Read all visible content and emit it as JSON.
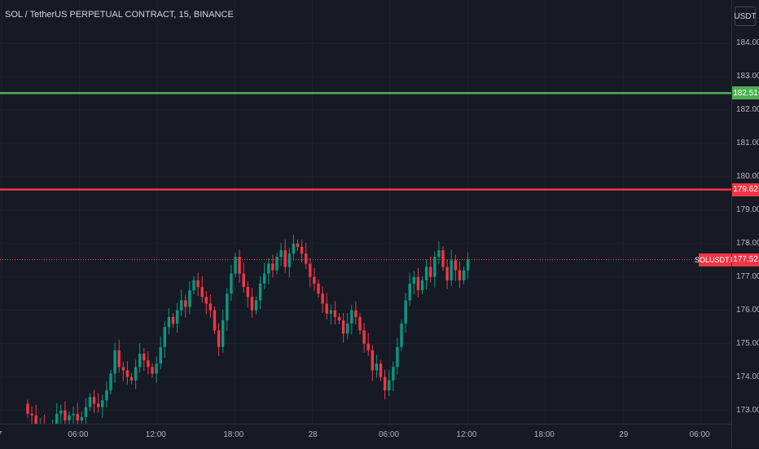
{
  "header": {
    "symbol_title": "SOL / TetherUS PERPETUAL CONTRACT, 15, BINANCE"
  },
  "price_axis": {
    "currency": "USDT",
    "ticks": [
      "184.00",
      "183.00",
      "182.00",
      "181.00",
      "180.00",
      "179.00",
      "178.00",
      "177.00",
      "176.00",
      "175.00",
      "174.00",
      "173.00"
    ]
  },
  "time_axis": {
    "ticks": [
      "7",
      "06:00",
      "12:00",
      "18:00",
      "28",
      "06:00",
      "12:00",
      "18:00",
      "29",
      "06:00"
    ]
  },
  "levels": {
    "green": {
      "price": 182.51,
      "label": "182.51",
      "color": "#4caf50"
    },
    "red": {
      "price": 179.62,
      "label": "179.62",
      "color": "#f23645"
    }
  },
  "last_price": {
    "symbol": "SOLUSDT.P",
    "label": "177.52",
    "price": 177.52,
    "color": "#f23645"
  },
  "colors": {
    "up": "#089981",
    "down": "#f23645",
    "grid": "#1e222d",
    "background": "#161a25"
  },
  "chart_data": {
    "type": "candlestick",
    "title": "SOL / TetherUS PERPETUAL CONTRACT, 15, BINANCE",
    "interval": "15",
    "ylim": [
      172.6,
      185.3
    ],
    "x_ticks": [
      "7",
      "06:00",
      "12:00",
      "18:00",
      "28",
      "06:00",
      "12:00",
      "18:00",
      "29",
      "06:00"
    ],
    "y_ticks": [
      173,
      174,
      175,
      176,
      177,
      178,
      179,
      180,
      181,
      182,
      183,
      184
    ],
    "closes": [
      172.9,
      172.85,
      172.5,
      172.6,
      172.3,
      172.4,
      172.5,
      172.9,
      173.0,
      172.7,
      172.85,
      172.9,
      172.7,
      172.8,
      173.1,
      173.4,
      173.2,
      173.1,
      173.3,
      173.6,
      174.1,
      174.8,
      174.3,
      174.2,
      174.0,
      173.9,
      174.3,
      174.7,
      174.5,
      174.3,
      174.1,
      174.4,
      174.9,
      175.5,
      175.8,
      175.6,
      176.0,
      176.3,
      176.1,
      176.6,
      176.9,
      176.7,
      176.4,
      176.2,
      176.0,
      175.4,
      174.9,
      175.7,
      176.5,
      177.1,
      177.6,
      177.1,
      176.7,
      176.4,
      176.0,
      176.3,
      176.8,
      177.1,
      177.4,
      177.2,
      177.6,
      177.8,
      177.3,
      177.7,
      178.0,
      177.9,
      177.7,
      177.4,
      177.0,
      176.8,
      176.5,
      176.2,
      175.9,
      176.0,
      175.8,
      175.7,
      175.3,
      175.6,
      176.0,
      175.8,
      175.4,
      175.0,
      174.8,
      174.2,
      174.4,
      174.0,
      173.6,
      173.9,
      174.3,
      174.9,
      175.6,
      176.3,
      176.8,
      177.0,
      176.6,
      176.9,
      177.3,
      177.0,
      177.6,
      177.8,
      177.3,
      176.9,
      177.5,
      177.2,
      176.9,
      177.2,
      177.52
    ]
  }
}
